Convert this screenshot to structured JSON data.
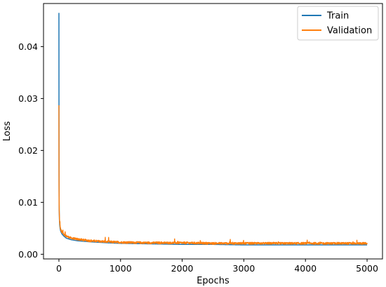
{
  "chart_data": {
    "type": "line",
    "title": "",
    "xlabel": "Epochs",
    "ylabel": "Loss",
    "xlim": [
      -250,
      5250
    ],
    "ylim": [
      -0.0009,
      0.0483
    ],
    "xticks": [
      0,
      1000,
      2000,
      3000,
      4000,
      5000
    ],
    "xtick_labels": [
      "0",
      "1000",
      "2000",
      "3000",
      "4000",
      "5000"
    ],
    "yticks": [
      0.0,
      0.01,
      0.02,
      0.03,
      0.04
    ],
    "ytick_labels": [
      "0.00",
      "0.01",
      "0.02",
      "0.03",
      "0.04"
    ],
    "grid": false,
    "legend_position": "top-right",
    "series": [
      {
        "name": "Train",
        "color": "#1f77b4",
        "x": [
          0,
          1,
          2,
          3,
          5,
          8,
          12,
          20,
          30,
          50,
          80,
          120,
          200,
          300,
          500,
          800,
          1000,
          1500,
          2000,
          2500,
          3000,
          3500,
          4000,
          4500,
          5000
        ],
        "y": [
          0.0465,
          0.028,
          0.015,
          0.011,
          0.0085,
          0.0068,
          0.0058,
          0.0049,
          0.0044,
          0.0039,
          0.0035,
          0.0031,
          0.0028,
          0.0026,
          0.0024,
          0.0022,
          0.0021,
          0.002,
          0.0019,
          0.0019,
          0.0018,
          0.0018,
          0.0018,
          0.0018,
          0.0018
        ]
      },
      {
        "name": "Validation",
        "color": "#ff7f0e",
        "x": [
          0,
          1,
          2,
          3,
          5,
          8,
          12,
          20,
          30,
          50,
          80,
          120,
          200,
          300,
          500,
          800,
          1000,
          1500,
          2000,
          2500,
          3000,
          3500,
          4000,
          4500,
          5000
        ],
        "y": [
          0.0287,
          0.02,
          0.013,
          0.0105,
          0.0085,
          0.0072,
          0.0062,
          0.0053,
          0.0047,
          0.0043,
          0.0039,
          0.0035,
          0.0031,
          0.0029,
          0.0026,
          0.0024,
          0.0023,
          0.0022,
          0.0022,
          0.0021,
          0.0021,
          0.0021,
          0.0021,
          0.0021,
          0.0021
        ],
        "noise": 0.0004
      }
    ]
  }
}
